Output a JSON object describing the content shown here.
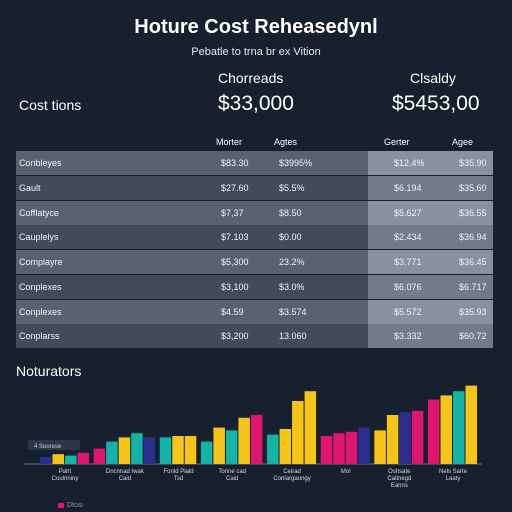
{
  "header": {
    "title": "Hoture Cost Reheasedynl",
    "subtitle": "Pebatle to trna br ex Vition"
  },
  "kpis": {
    "section_label": "Cost tions",
    "items": [
      {
        "label": "Chorreads",
        "value": "$33,000"
      },
      {
        "label": "Clsaldy",
        "value": "$5453,00"
      }
    ]
  },
  "table": {
    "columns": [
      "Morter",
      "Agtes",
      "Gerter",
      "Agee"
    ],
    "rows": [
      {
        "label": "Conbleyes",
        "c1": "$83.30",
        "c2": "$3995%",
        "c3": "$12.4%",
        "c4": "$35.90"
      },
      {
        "label": "Gault",
        "c1": "$27.60",
        "c2": "$5.5%",
        "c3": "$6.194",
        "c4": "$35.60"
      },
      {
        "label": "Cofflatyce",
        "c1": "$7,37",
        "c2": "$8.50",
        "c3": "$5.627",
        "c4": "$36.55"
      },
      {
        "label": "Cauplelys",
        "c1": "$7.103",
        "c2": "$0.00",
        "c3": "$2.434",
        "c4": "$36.94"
      },
      {
        "label": "Complayre",
        "c1": "$5,300",
        "c2": "23.2%",
        "c3": "$3.771",
        "c4": "$36.45"
      },
      {
        "label": "Conplexes",
        "c1": "$3,100",
        "c2": "$3.0%",
        "c3": "$6.076",
        "c4": "$6.717"
      },
      {
        "label": "Conplexes",
        "c1": "$4.59",
        "c2": "$3.574",
        "c3": "$5.572",
        "c4": "$35.93"
      },
      {
        "label": "Conplarss",
        "c1": "$3,200",
        "c2": "13.060",
        "c3": "$3.332",
        "c4": "$60.72"
      }
    ]
  },
  "chart_data": {
    "type": "bar",
    "title": "Noturators",
    "annotation": "4 Soorese",
    "legend": [
      {
        "label": "Dtosi",
        "color": "#e0156f"
      }
    ],
    "groups": [
      {
        "label": "Paht\nCoulnniny",
        "bars": [
          {
            "value": 5,
            "color": "#2a2f8f"
          },
          {
            "value": 7,
            "color": "#f5c518"
          },
          {
            "value": 6,
            "color": "#12b3a8"
          },
          {
            "value": 8,
            "color": "#e0156f"
          }
        ]
      },
      {
        "label": "Dncnnad Iwak\nCaid",
        "bars": [
          {
            "value": 11,
            "color": "#e0156f"
          },
          {
            "value": 16,
            "color": "#12b3a8"
          },
          {
            "value": 19,
            "color": "#f5c518"
          },
          {
            "value": 22,
            "color": "#12b3a8"
          },
          {
            "value": 19,
            "color": "#2a2f8f"
          }
        ]
      },
      {
        "label": "Fonld Piald\nTsd",
        "bars": [
          {
            "value": 19,
            "color": "#12b3a8"
          },
          {
            "value": 20,
            "color": "#f5c518"
          },
          {
            "value": 20,
            "color": "#f5c518"
          }
        ]
      },
      {
        "label": "Tonne cad\nCaid",
        "bars": [
          {
            "value": 16,
            "color": "#12b3a8"
          },
          {
            "value": 26,
            "color": "#f5c518"
          },
          {
            "value": 24,
            "color": "#12b3a8"
          },
          {
            "value": 33,
            "color": "#f5c518"
          },
          {
            "value": 35,
            "color": "#e0156f"
          }
        ]
      },
      {
        "label": "Ceirad\nConlargaongy",
        "bars": [
          {
            "value": 21,
            "color": "#12b3a8"
          },
          {
            "value": 25,
            "color": "#f5c518"
          },
          {
            "value": 45,
            "color": "#f5c518"
          },
          {
            "value": 52,
            "color": "#f5c518"
          }
        ]
      },
      {
        "label": "Mol",
        "bars": [
          {
            "value": 20,
            "color": "#e0156f"
          },
          {
            "value": 22,
            "color": "#e0156f"
          },
          {
            "value": 23,
            "color": "#e0156f"
          },
          {
            "value": 26,
            "color": "#2a2f8f"
          }
        ]
      },
      {
        "label": "Oshsate\nCaitnegd\nEanns",
        "bars": [
          {
            "value": 24,
            "color": "#f5c518"
          },
          {
            "value": 35,
            "color": "#f5c518"
          },
          {
            "value": 37,
            "color": "#2a2f8f"
          },
          {
            "value": 38,
            "color": "#e0156f"
          }
        ]
      },
      {
        "label": "Nels Sarte\nLaaty",
        "bars": [
          {
            "value": 46,
            "color": "#e0156f"
          },
          {
            "value": 49,
            "color": "#f5c518"
          },
          {
            "value": 52,
            "color": "#12b3a8"
          },
          {
            "value": 56,
            "color": "#f5c518"
          }
        ]
      }
    ],
    "ylim": [
      0,
      60
    ]
  }
}
